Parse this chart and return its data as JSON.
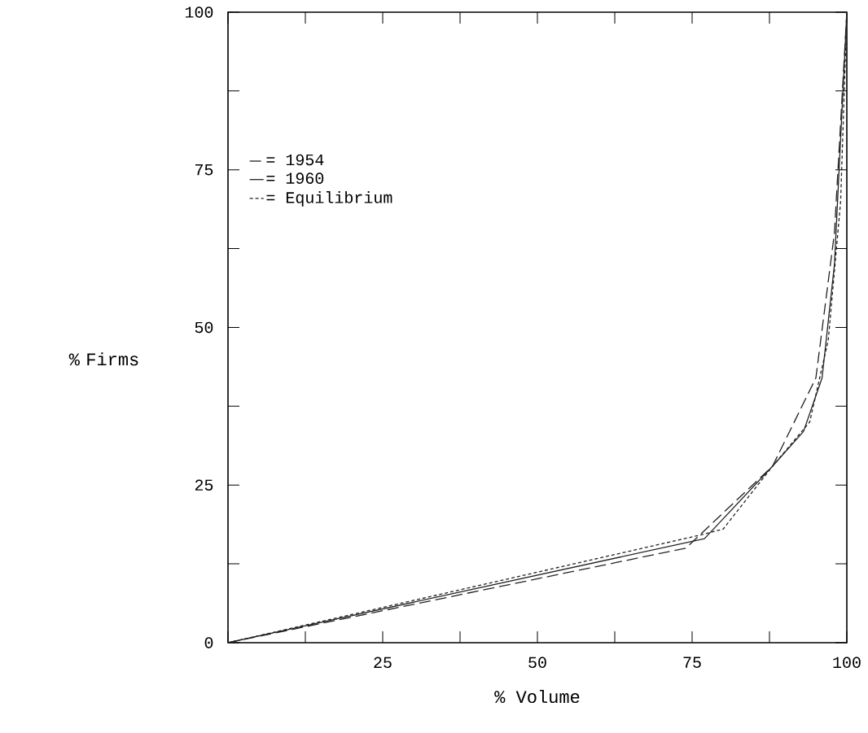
{
  "chart_data": {
    "type": "line",
    "xlabel": "% Volume",
    "ylabel": "% Firms",
    "xlim": [
      0,
      100
    ],
    "ylim": [
      0,
      100
    ],
    "xticks": [
      {
        "value": 0,
        "label": null
      },
      {
        "value": 12.5,
        "label": null
      },
      25,
      {
        "value": 37.5,
        "label": null
      },
      50,
      {
        "value": 62.5,
        "label": null
      },
      75,
      {
        "value": 87.5,
        "label": null
      },
      100
    ],
    "yticks": [
      0,
      {
        "value": 12.5,
        "label": null
      },
      25,
      {
        "value": 37.5,
        "label": null
      },
      50,
      {
        "value": 62.5,
        "label": null
      },
      75,
      {
        "value": 87.5,
        "label": null
      },
      100
    ],
    "grid": false,
    "legend": "top left",
    "marker": "none",
    "series": [
      {
        "name": "= 1954",
        "color": "#222222",
        "line_style": "dashed",
        "x": [
          0,
          74,
          88,
          95,
          98,
          100
        ],
        "values": [
          0,
          15,
          28,
          42,
          65,
          100
        ]
      },
      {
        "name": "= 1960",
        "color": "#222222",
        "line_style": "solid",
        "x": [
          0,
          77,
          88,
          93,
          96,
          98,
          100
        ],
        "values": [
          0,
          16.5,
          28,
          33.5,
          42,
          60,
          100
        ]
      },
      {
        "name": "= Equilibrium",
        "color": "#222222",
        "line_style": "dotted",
        "x": [
          0,
          76,
          80,
          88,
          94,
          97,
          99,
          100
        ],
        "values": [
          0,
          17,
          18,
          28,
          35,
          48,
          70,
          100
        ]
      }
    ]
  }
}
